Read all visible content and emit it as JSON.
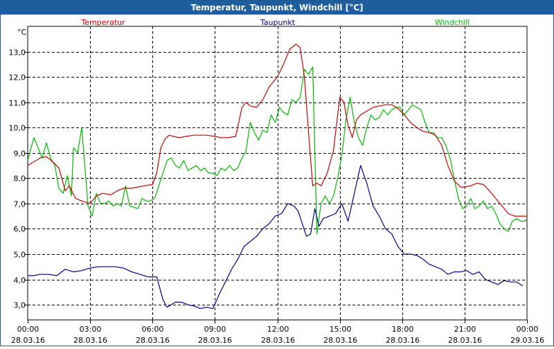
{
  "title": "Temperatur, Taupunkt, Windchill [°C]",
  "chart_data": {
    "type": "line",
    "title": "Temperatur, Taupunkt, Windchill [°C]",
    "ylabel": "°C",
    "ylim": [
      2.4,
      14.0
    ],
    "yticks": [
      3.0,
      4.0,
      5.0,
      6.0,
      7.0,
      8.0,
      9.0,
      10.0,
      11.0,
      12.0,
      13.0
    ],
    "ytick_labels": [
      "3,0",
      "4,0",
      "5,0",
      "6,0",
      "7,0",
      "8,0",
      "9,0",
      "10,0",
      "11,0",
      "12,0",
      "13,0"
    ],
    "xlim": [
      0,
      24
    ],
    "xticks": [
      0,
      3,
      6,
      9,
      12,
      15,
      18,
      21,
      24
    ],
    "xtick_labels": [
      [
        "00:00",
        "28.03.16"
      ],
      [
        "03:00",
        "28.03.16"
      ],
      [
        "06:00",
        "28.03.16"
      ],
      [
        "09:00",
        "28.03.16"
      ],
      [
        "12:00",
        "28.03.16"
      ],
      [
        "15:00",
        "28.03.16"
      ],
      [
        "18:00",
        "28.03.16"
      ],
      [
        "21:00",
        "28.03.16"
      ],
      [
        "00:00",
        "29.03.16"
      ]
    ],
    "grid": true,
    "series": [
      {
        "name": "Temperatur",
        "color": "#cc0000",
        "x": [
          0,
          0.3,
          0.6,
          0.9,
          1.2,
          1.5,
          1.8,
          2.0,
          2.3,
          2.6,
          3.0,
          3.3,
          3.6,
          4.0,
          4.3,
          4.6,
          5.0,
          5.3,
          5.6,
          6.0,
          6.2,
          6.4,
          6.6,
          6.8,
          7.0,
          7.3,
          7.6,
          8.0,
          8.3,
          8.6,
          9.0,
          9.3,
          9.6,
          10.0,
          10.3,
          10.5,
          10.7,
          11.0,
          11.3,
          11.6,
          12.0,
          12.3,
          12.6,
          12.9,
          13.1,
          13.3,
          13.5,
          13.7,
          13.9,
          14.1,
          14.4,
          14.7,
          15.0,
          15.2,
          15.4,
          15.6,
          15.8,
          16.0,
          16.3,
          16.6,
          16.9,
          17.2,
          17.5,
          17.8,
          18.1,
          18.4,
          18.7,
          19.0,
          19.3,
          19.6,
          19.9,
          20.2,
          20.5,
          20.8,
          21.0,
          21.3,
          21.6,
          21.9,
          22.2,
          22.5,
          22.8,
          23.1,
          23.4,
          23.6,
          23.8,
          24.0
        ],
        "y": [
          8.5,
          8.65,
          8.8,
          8.85,
          8.65,
          8.4,
          7.5,
          7.7,
          7.2,
          7.1,
          7.0,
          7.3,
          7.4,
          7.35,
          7.5,
          7.6,
          7.6,
          7.65,
          7.7,
          7.75,
          8.2,
          9.2,
          9.55,
          9.7,
          9.65,
          9.6,
          9.65,
          9.7,
          9.7,
          9.7,
          9.65,
          9.6,
          9.6,
          9.65,
          10.8,
          11.0,
          10.85,
          10.8,
          11.1,
          11.6,
          12.0,
          12.5,
          13.1,
          13.3,
          13.15,
          12.0,
          9.8,
          7.7,
          7.8,
          7.7,
          8.2,
          9.1,
          11.2,
          11.0,
          10.1,
          9.6,
          10.3,
          10.5,
          10.65,
          10.8,
          10.85,
          10.9,
          10.9,
          10.75,
          10.5,
          10.2,
          10.0,
          9.85,
          9.8,
          9.7,
          9.3,
          8.5,
          7.9,
          7.65,
          7.65,
          7.7,
          7.8,
          7.75,
          7.5,
          7.2,
          6.9,
          6.6,
          6.5,
          6.5,
          6.5,
          6.5
        ]
      },
      {
        "name": "Taupunkt",
        "color": "#00008b",
        "x": [
          0,
          0.3,
          0.6,
          1.0,
          1.4,
          1.8,
          2.2,
          2.6,
          3.0,
          3.4,
          3.8,
          4.2,
          4.6,
          5.0,
          5.4,
          5.8,
          6.2,
          6.5,
          6.7,
          6.9,
          7.1,
          7.4,
          7.7,
          8.0,
          8.3,
          8.6,
          8.9,
          9.2,
          9.5,
          9.8,
          10.1,
          10.4,
          10.7,
          11.0,
          11.3,
          11.6,
          11.9,
          12.2,
          12.5,
          12.8,
          13.0,
          13.2,
          13.4,
          13.6,
          13.8,
          14.0,
          14.2,
          14.5,
          14.8,
          15.1,
          15.4,
          15.7,
          16.0,
          16.3,
          16.6,
          16.9,
          17.2,
          17.5,
          17.8,
          18.1,
          18.4,
          18.7,
          19.0,
          19.3,
          19.6,
          19.9,
          20.2,
          20.5,
          20.8,
          21.1,
          21.4,
          21.7,
          22.0,
          22.3,
          22.6,
          22.9,
          23.2,
          23.5,
          23.8
        ],
        "y": [
          4.15,
          4.15,
          4.2,
          4.2,
          4.15,
          4.4,
          4.3,
          4.35,
          4.45,
          4.5,
          4.5,
          4.5,
          4.45,
          4.3,
          4.2,
          4.1,
          4.1,
          3.2,
          2.9,
          3.0,
          3.1,
          3.1,
          3.0,
          2.95,
          2.85,
          2.9,
          2.85,
          3.4,
          3.9,
          4.4,
          4.8,
          5.3,
          5.5,
          5.7,
          6.0,
          6.2,
          6.5,
          6.6,
          7.0,
          6.9,
          6.7,
          6.2,
          5.7,
          5.8,
          6.8,
          6.1,
          6.4,
          6.5,
          6.6,
          7.0,
          6.3,
          7.4,
          8.5,
          7.8,
          6.9,
          6.5,
          6.0,
          5.8,
          5.3,
          5.0,
          5.0,
          4.95,
          4.8,
          4.6,
          4.5,
          4.4,
          4.2,
          4.3,
          4.3,
          4.35,
          4.2,
          4.3,
          4.0,
          3.9,
          3.8,
          3.95,
          3.9,
          3.9,
          3.75
        ]
      },
      {
        "name": "Windchill",
        "color": "#00bb00",
        "x": [
          0,
          0.3,
          0.5,
          0.7,
          0.9,
          1.1,
          1.3,
          1.5,
          1.7,
          1.9,
          2.1,
          2.2,
          2.4,
          2.6,
          2.9,
          3.1,
          3.3,
          3.5,
          3.7,
          3.9,
          4.1,
          4.3,
          4.5,
          4.7,
          4.9,
          5.1,
          5.3,
          5.5,
          5.7,
          5.9,
          6.1,
          6.3,
          6.5,
          6.7,
          6.9,
          7.1,
          7.3,
          7.5,
          7.7,
          7.9,
          8.1,
          8.3,
          8.5,
          8.7,
          8.9,
          9.1,
          9.3,
          9.5,
          9.7,
          9.9,
          10.1,
          10.3,
          10.5,
          10.7,
          10.9,
          11.1,
          11.3,
          11.5,
          11.7,
          11.9,
          12.1,
          12.3,
          12.5,
          12.7,
          12.9,
          13.1,
          13.3,
          13.5,
          13.7,
          13.9,
          14.1,
          14.3,
          14.5,
          14.7,
          14.9,
          15.1,
          15.3,
          15.5,
          15.7,
          15.9,
          16.1,
          16.3,
          16.5,
          16.7,
          16.9,
          17.1,
          17.3,
          17.5,
          17.7,
          17.9,
          18.1,
          18.3,
          18.5,
          18.7,
          18.9,
          19.1,
          19.3,
          19.5,
          19.7,
          19.9,
          20.1,
          20.3,
          20.5,
          20.7,
          20.9,
          21.1,
          21.3,
          21.5,
          21.7,
          21.9,
          22.1,
          22.3,
          22.5,
          22.7,
          22.9,
          23.1,
          23.3,
          23.5,
          23.7,
          23.9,
          24.0
        ],
        "y": [
          8.7,
          9.6,
          9.2,
          8.8,
          9.4,
          8.8,
          8.5,
          7.6,
          7.4,
          8.1,
          7.3,
          9.2,
          9.0,
          10.0,
          6.9,
          6.5,
          7.4,
          7.0,
          7.0,
          7.1,
          6.9,
          7.0,
          6.9,
          7.7,
          6.9,
          6.85,
          6.8,
          7.2,
          7.1,
          7.1,
          7.2,
          7.7,
          8.2,
          8.7,
          8.8,
          8.5,
          8.4,
          8.7,
          8.3,
          8.4,
          8.5,
          8.3,
          8.4,
          8.2,
          8.2,
          8.1,
          8.4,
          8.3,
          8.5,
          8.3,
          8.4,
          8.8,
          9.1,
          10.2,
          9.8,
          9.5,
          9.9,
          9.8,
          10.5,
          10.2,
          10.8,
          10.6,
          10.5,
          11.1,
          11.0,
          11.2,
          12.3,
          12.1,
          12.4,
          5.8,
          7.0,
          7.3,
          7.0,
          7.3,
          8.0,
          8.9,
          10.3,
          11.2,
          10.2,
          9.6,
          9.3,
          10.0,
          10.5,
          10.3,
          10.4,
          10.7,
          10.5,
          10.7,
          10.8,
          10.8,
          10.5,
          10.7,
          10.9,
          10.8,
          10.7,
          10.2,
          9.8,
          9.8,
          9.6,
          9.6,
          9.3,
          8.8,
          8.0,
          7.2,
          6.8,
          6.9,
          7.2,
          6.8,
          6.9,
          7.1,
          6.8,
          6.9,
          6.6,
          6.2,
          6.0,
          5.9,
          6.3,
          6.4,
          6.3,
          6.3,
          6.4
        ]
      }
    ]
  }
}
